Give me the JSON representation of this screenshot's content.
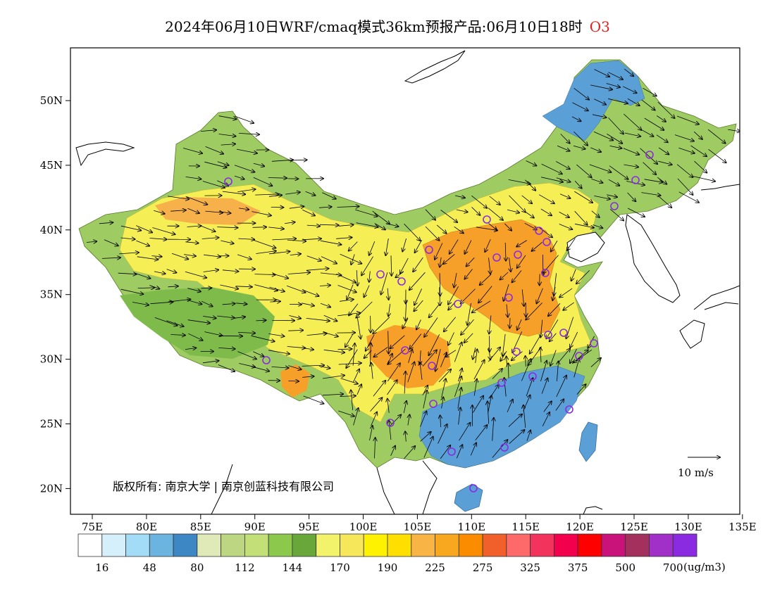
{
  "title": {
    "text": "2024年06月10日WRF/cmaq模式36km预报产品:06月10日18时",
    "pollutant": "O3"
  },
  "map": {
    "lon_range": [
      73,
      135
    ],
    "lat_range": [
      18,
      54
    ],
    "lon_ticks": [
      "75E",
      "80E",
      "85E",
      "90E",
      "95E",
      "100E",
      "105E",
      "110E",
      "115E",
      "120E",
      "125E",
      "130E",
      "135E"
    ],
    "lat_ticks": [
      "50N",
      "45N",
      "40N",
      "35N",
      "30N",
      "25N",
      "20N"
    ],
    "copyright": "版权所有: 南京大学 | 南京创蓝科技有限公司",
    "wind_scale_label": "10 m/s"
  },
  "legend": {
    "colors": [
      "#ffffff",
      "#d6f0fb",
      "#a3dcf6",
      "#6bb4e0",
      "#3d88c4",
      "#dfeab8",
      "#bcd682",
      "#c3e078",
      "#8cc84b",
      "#6aa73a",
      "#f2f36a",
      "#f6e65a",
      "#fff200",
      "#ffdf00",
      "#f8b444",
      "#f7a81e",
      "#fb8c00",
      "#f15f2b",
      "#fe6a6a",
      "#f2335c",
      "#f2004e",
      "#fe0000",
      "#c9137a",
      "#a4305d",
      "#a030c8",
      "#8a2be2"
    ],
    "tick_labels": [
      "16",
      "48",
      "80",
      "112",
      "144",
      "170",
      "190",
      "225",
      "275",
      "325",
      "375",
      "500",
      "700"
    ],
    "unit": "(ug/m3)"
  }
}
